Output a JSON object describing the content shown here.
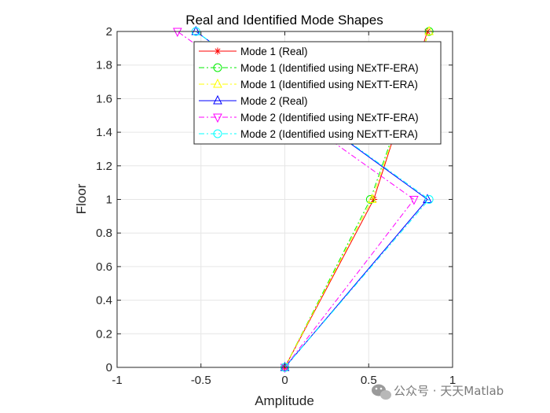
{
  "chart_data": {
    "type": "line",
    "title": "Real and Identified Mode Shapes",
    "xlabel": "Amplitude",
    "ylabel": "Floor",
    "xlim": [
      -1,
      1
    ],
    "ylim": [
      0,
      2
    ],
    "xticks": [
      -1,
      -0.5,
      0,
      0.5,
      1
    ],
    "xtick_labels": [
      "-1",
      "-0.5",
      "0",
      "0.5",
      "1"
    ],
    "yticks": [
      0,
      0.2,
      0.4,
      0.6,
      0.8,
      1,
      1.2,
      1.4,
      1.6,
      1.8,
      2
    ],
    "ytick_labels": [
      "0",
      "0.2",
      "0.4",
      "0.6",
      "0.8",
      "1",
      "1.2",
      "1.4",
      "1.6",
      "1.8",
      "2"
    ],
    "grid": true,
    "legend_position": "top-right",
    "series": [
      {
        "name": "Mode 1 (Real)",
        "x": [
          0,
          0.53,
          0.85
        ],
        "y": [
          0,
          1,
          2
        ],
        "color": "#ff0000",
        "line": "solid",
        "marker": "asterisk"
      },
      {
        "name": "Mode 1 (Identified using NExTF-ERA)",
        "x": [
          0,
          0.51,
          0.86
        ],
        "y": [
          0,
          1,
          2
        ],
        "color": "#00ee00",
        "line": "dashdot",
        "marker": "circle"
      },
      {
        "name": "Mode 1 (Identified using NExTT-ERA)",
        "x": [
          0,
          0.52,
          0.86
        ],
        "y": [
          0,
          1,
          2
        ],
        "color": "#ffff00",
        "line": "dashdot",
        "marker": "triangle-up"
      },
      {
        "name": "Mode 2 (Real)",
        "x": [
          0,
          0.85,
          -0.53
        ],
        "y": [
          0,
          1,
          2
        ],
        "color": "#0000ff",
        "line": "solid",
        "marker": "triangle-up"
      },
      {
        "name": "Mode 2 (Identified using NExTF-ERA)",
        "x": [
          0,
          0.77,
          -0.64
        ],
        "y": [
          0,
          1,
          2
        ],
        "color": "#ff00ff",
        "line": "dashdot",
        "marker": "triangle-down"
      },
      {
        "name": "Mode 2 (Identified using NExTT-ERA)",
        "x": [
          0,
          0.86,
          -0.53
        ],
        "y": [
          0,
          1,
          2
        ],
        "color": "#00ffff",
        "line": "dashdot",
        "marker": "circle"
      }
    ]
  },
  "watermark": {
    "text": "公众号 · 天天Matlab"
  },
  "colors": {
    "axes": "#262626",
    "grid": "#e6e6e6",
    "legend_border": "#262626"
  }
}
